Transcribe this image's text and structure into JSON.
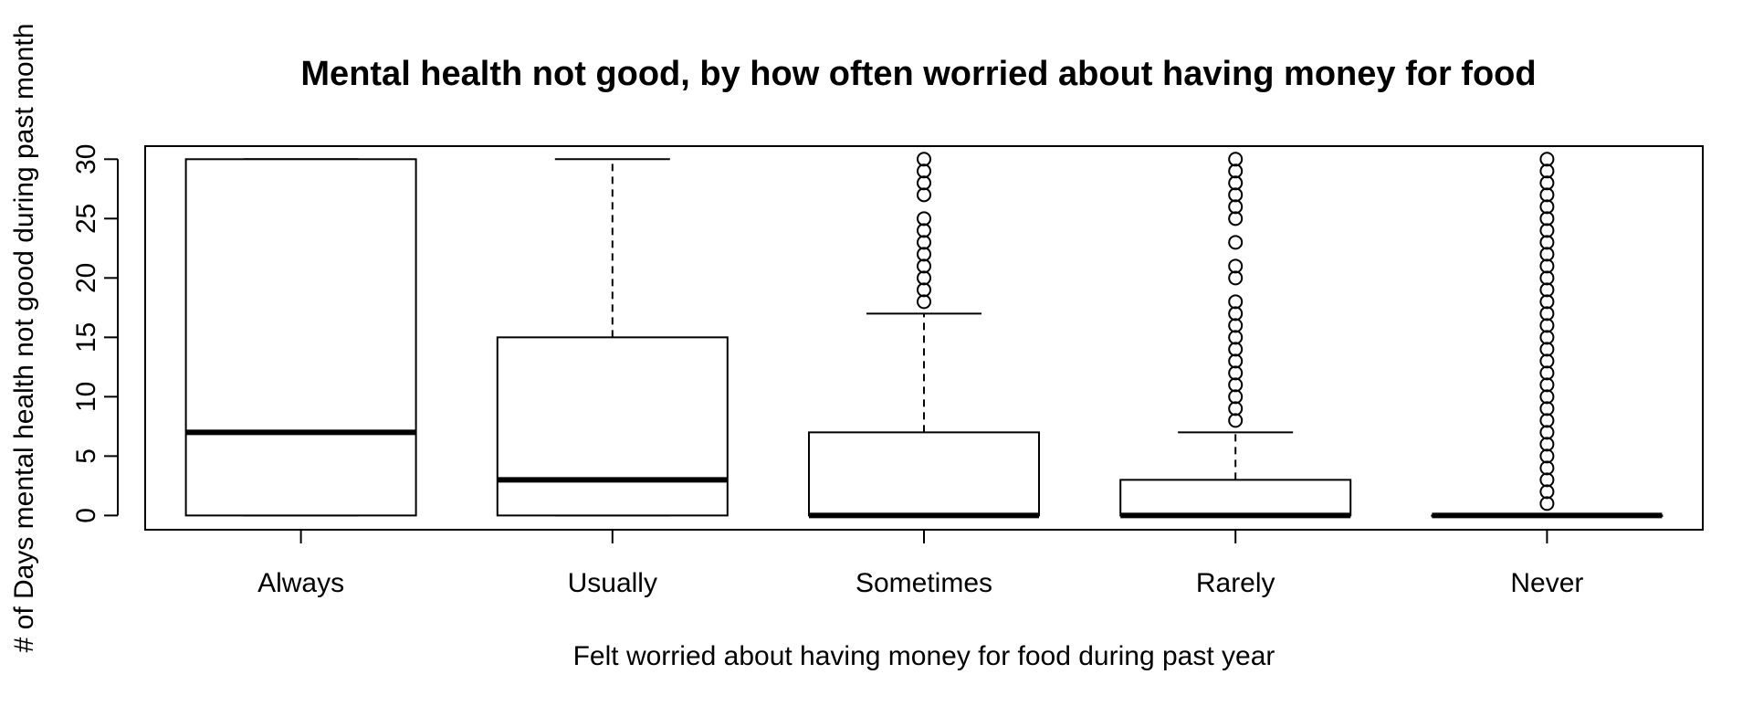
{
  "chart_data": {
    "type": "boxplot",
    "title": "Mental health not good, by how often worried about having money for food",
    "xlabel": "Felt worried about having money for food during past year",
    "ylabel": "# of Days mental health not good during past month",
    "categories": [
      "Always",
      "Usually",
      "Sometimes",
      "Rarely",
      "Never"
    ],
    "ylim": [
      -1.2,
      31.1
    ],
    "yticks": [
      0,
      5,
      10,
      15,
      20,
      25,
      30
    ],
    "grid": false,
    "boxes": [
      {
        "category": "Always",
        "whisker_low": 0,
        "q1": 0,
        "median": 7,
        "q3": 30,
        "whisker_high": 30,
        "outliers": []
      },
      {
        "category": "Usually",
        "whisker_low": 0,
        "q1": 0,
        "median": 3,
        "q3": 15,
        "whisker_high": 30,
        "outliers": []
      },
      {
        "category": "Sometimes",
        "whisker_low": 0,
        "q1": 0,
        "median": 0,
        "q3": 7,
        "whisker_high": 17,
        "outliers": [
          18,
          19,
          20,
          21,
          22,
          23,
          24,
          25,
          27,
          28,
          29,
          30
        ]
      },
      {
        "category": "Rarely",
        "whisker_low": 0,
        "q1": 0,
        "median": 0,
        "q3": 3,
        "whisker_high": 7,
        "outliers": [
          8,
          9,
          10,
          11,
          12,
          13,
          14,
          15,
          16,
          17,
          18,
          20,
          21,
          23,
          25,
          26,
          27,
          28,
          29,
          30
        ]
      },
      {
        "category": "Never",
        "whisker_low": 0,
        "q1": 0,
        "median": 0,
        "q3": 0,
        "whisker_high": 0,
        "outliers": [
          1,
          2,
          3,
          4,
          5,
          6,
          7,
          8,
          9,
          10,
          11,
          12,
          13,
          14,
          15,
          16,
          17,
          18,
          19,
          20,
          21,
          22,
          23,
          24,
          25,
          26,
          27,
          28,
          29,
          30
        ]
      }
    ]
  }
}
